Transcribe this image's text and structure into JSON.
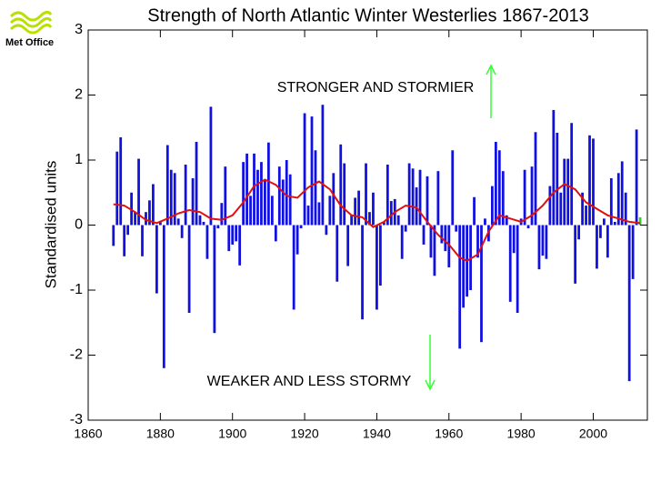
{
  "chart_data": {
    "type": "bar",
    "title": "Strength of North Atlantic Winter Westerlies 1867-2013",
    "y_label": "Standardised units",
    "logo": "Met Office",
    "annotations": [
      "STRONGER AND STORMIER",
      "WEAKER AND LESS STORMY"
    ],
    "annotation_color": "#33ff33",
    "x": [
      1867,
      1868,
      1869,
      1870,
      1871,
      1872,
      1873,
      1874,
      1875,
      1876,
      1877,
      1878,
      1879,
      1880,
      1881,
      1882,
      1883,
      1884,
      1885,
      1886,
      1887,
      1888,
      1889,
      1890,
      1891,
      1892,
      1893,
      1894,
      1895,
      1896,
      1897,
      1898,
      1899,
      1900,
      1901,
      1902,
      1903,
      1904,
      1905,
      1906,
      1907,
      1908,
      1909,
      1910,
      1911,
      1912,
      1913,
      1914,
      1915,
      1916,
      1917,
      1918,
      1919,
      1920,
      1921,
      1922,
      1923,
      1924,
      1925,
      1926,
      1927,
      1928,
      1929,
      1930,
      1931,
      1932,
      1933,
      1934,
      1935,
      1936,
      1937,
      1938,
      1939,
      1940,
      1941,
      1942,
      1943,
      1944,
      1945,
      1946,
      1947,
      1948,
      1949,
      1950,
      1951,
      1952,
      1953,
      1954,
      1955,
      1956,
      1957,
      1958,
      1959,
      1960,
      1961,
      1962,
      1963,
      1964,
      1965,
      1966,
      1967,
      1968,
      1969,
      1970,
      1971,
      1972,
      1973,
      1974,
      1975,
      1976,
      1977,
      1978,
      1979,
      1980,
      1981,
      1982,
      1983,
      1984,
      1985,
      1986,
      1987,
      1988,
      1989,
      1990,
      1991,
      1992,
      1993,
      1994,
      1995,
      1996,
      1997,
      1998,
      1999,
      2000,
      2001,
      2002,
      2003,
      2004,
      2005,
      2006,
      2007,
      2008,
      2009,
      2010,
      2011,
      2012,
      2013
    ],
    "values": [
      -0.32,
      1.13,
      1.35,
      -0.48,
      -0.15,
      0.5,
      0.2,
      1.02,
      -0.48,
      0.2,
      0.38,
      0.63,
      -1.05,
      0.05,
      -2.2,
      1.23,
      0.85,
      0.8,
      0.1,
      -0.2,
      0.93,
      -1.35,
      0.72,
      1.28,
      0.15,
      0.05,
      -0.52,
      1.82,
      -1.66,
      -0.05,
      0.34,
      0.9,
      -0.4,
      -0.3,
      -0.25,
      -0.62,
      0.97,
      1.1,
      0.45,
      1.1,
      0.85,
      0.97,
      0.7,
      1.27,
      0.45,
      -0.25,
      0.9,
      0.7,
      1.0,
      0.78,
      -1.3,
      -0.45,
      -0.05,
      1.72,
      0.3,
      1.67,
      1.15,
      0.35,
      1.85,
      -0.15,
      0.45,
      0.8,
      -0.87,
      1.24,
      0.95,
      -0.63,
      0.15,
      0.42,
      0.53,
      -1.45,
      0.95,
      0.2,
      0.5,
      -1.3,
      -0.93,
      0.05,
      0.93,
      0.37,
      0.4,
      0.15,
      -0.52,
      -0.1,
      0.95,
      0.87,
      0.58,
      0.85,
      -0.3,
      0.75,
      -0.5,
      -0.78,
      0.83,
      -0.28,
      -0.4,
      -0.65,
      1.15,
      -0.1,
      -1.9,
      -1.27,
      -1.1,
      -1.0,
      0.43,
      -0.5,
      -1.8,
      0.1,
      -0.25,
      0.6,
      1.28,
      1.15,
      0.83,
      0.15,
      -1.18,
      -0.43,
      -1.35,
      0.1,
      0.85,
      -0.05,
      0.9,
      1.43,
      -0.68,
      -0.47,
      -0.52,
      0.6,
      1.77,
      1.42,
      0.5,
      1.02,
      1.02,
      1.57,
      -0.9,
      -0.22,
      0.5,
      0.3,
      1.38,
      1.33,
      -0.67,
      -0.2,
      0.1,
      -0.5,
      0.72,
      0.05,
      0.8,
      0.98,
      0.5,
      -2.4,
      -0.83,
      1.47,
      0.12
    ],
    "color": "#1010e0",
    "highlight": {
      "index": 146,
      "color": "#33cc33"
    },
    "line": {
      "color": "#e01010",
      "x": [
        1867,
        1870,
        1873,
        1876,
        1879,
        1882,
        1885,
        1888,
        1891,
        1894,
        1897,
        1900,
        1903,
        1906,
        1909,
        1912,
        1915,
        1918,
        1921,
        1924,
        1927,
        1930,
        1933,
        1936,
        1939,
        1942,
        1945,
        1948,
        1951,
        1954,
        1957,
        1960,
        1963,
        1965,
        1968,
        1971,
        1974,
        1977,
        1980,
        1983,
        1986,
        1989,
        1992,
        1995,
        1998,
        2001,
        2004,
        2007,
        2010,
        2013
      ],
      "values": [
        0.32,
        0.3,
        0.2,
        0.08,
        0.03,
        0.1,
        0.18,
        0.23,
        0.2,
        0.1,
        0.08,
        0.15,
        0.35,
        0.6,
        0.7,
        0.62,
        0.45,
        0.42,
        0.58,
        0.67,
        0.55,
        0.3,
        0.15,
        0.12,
        -0.03,
        0.05,
        0.2,
        0.3,
        0.27,
        0.05,
        -0.15,
        -0.3,
        -0.5,
        -0.55,
        -0.45,
        -0.1,
        0.15,
        0.1,
        0.05,
        0.15,
        0.3,
        0.5,
        0.63,
        0.55,
        0.35,
        0.25,
        0.15,
        0.1,
        0.05,
        0.03
      ]
    },
    "xlim": [
      1860,
      2015
    ],
    "xticks": [
      1860,
      1880,
      1900,
      1920,
      1940,
      1960,
      1980,
      2000
    ],
    "ylim": [
      -3,
      3
    ],
    "yticks": [
      -3,
      -2,
      -1,
      0,
      1,
      2,
      3
    ]
  }
}
